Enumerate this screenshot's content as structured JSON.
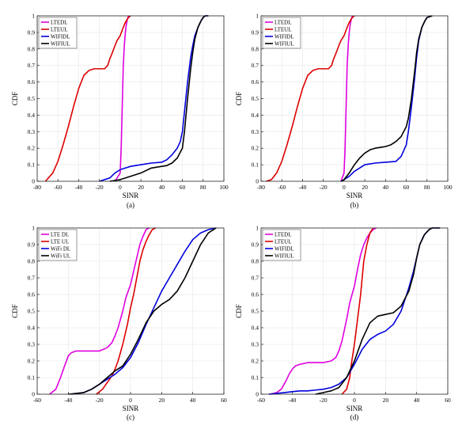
{
  "chart_data": [
    {
      "type": "line",
      "caption": "(a)",
      "xlabel": "SINR",
      "ylabel": "CDF",
      "xlim": [
        -80,
        100
      ],
      "ylim": [
        0,
        1
      ],
      "xticks": [
        -80,
        -60,
        -40,
        -20,
        0,
        20,
        40,
        60,
        80,
        100
      ],
      "yticks": [
        0,
        0.1,
        0.2,
        0.3,
        0.4,
        0.5,
        0.6,
        0.7,
        0.8,
        0.9,
        1
      ],
      "grid": true,
      "legend_position": "top-left",
      "series": [
        {
          "name": "LTEDL",
          "color": "#e000e0",
          "x": [
            -5,
            0,
            1,
            2,
            3,
            4,
            5,
            6,
            7,
            8
          ],
          "y": [
            0,
            0.05,
            0.2,
            0.45,
            0.7,
            0.82,
            0.9,
            0.95,
            0.98,
            1.0
          ]
        },
        {
          "name": "LTEUL",
          "color": "#dd0000",
          "x": [
            -72,
            -65,
            -60,
            -55,
            -50,
            -45,
            -40,
            -35,
            -30,
            -25,
            -20,
            -15,
            -12,
            -10,
            -8,
            -5,
            -3,
            0,
            3,
            5,
            8,
            10
          ],
          "y": [
            0,
            0.05,
            0.12,
            0.22,
            0.33,
            0.45,
            0.56,
            0.64,
            0.67,
            0.68,
            0.68,
            0.68,
            0.7,
            0.74,
            0.77,
            0.82,
            0.85,
            0.88,
            0.93,
            0.96,
            0.99,
            1.0
          ]
        },
        {
          "name": "WIFIDL",
          "color": "#0000dd",
          "x": [
            -20,
            -10,
            -5,
            0,
            5,
            10,
            20,
            30,
            40,
            45,
            50,
            55,
            58,
            60,
            62,
            65,
            68,
            70,
            72,
            75,
            78,
            80,
            82,
            85
          ],
          "y": [
            0,
            0.02,
            0.05,
            0.07,
            0.08,
            0.09,
            0.1,
            0.11,
            0.115,
            0.13,
            0.16,
            0.2,
            0.24,
            0.3,
            0.42,
            0.6,
            0.75,
            0.82,
            0.88,
            0.93,
            0.97,
            0.99,
            1.0,
            1.0
          ]
        },
        {
          "name": "WIFIUL",
          "color": "#000000",
          "x": [
            -10,
            0,
            10,
            20,
            30,
            40,
            45,
            50,
            55,
            60,
            62,
            65,
            68,
            70,
            72,
            75,
            78,
            80,
            82,
            85
          ],
          "y": [
            0,
            0.01,
            0.03,
            0.05,
            0.08,
            0.09,
            0.095,
            0.11,
            0.14,
            0.2,
            0.3,
            0.5,
            0.68,
            0.78,
            0.86,
            0.93,
            0.97,
            0.99,
            1.0,
            1.0
          ]
        }
      ]
    },
    {
      "type": "line",
      "caption": "(b)",
      "xlabel": "SINR",
      "ylabel": "CDF",
      "xlim": [
        -80,
        100
      ],
      "ylim": [
        0,
        1
      ],
      "xticks": [
        -80,
        -60,
        -40,
        -20,
        0,
        20,
        40,
        60,
        80,
        100
      ],
      "yticks": [
        0,
        0.1,
        0.2,
        0.3,
        0.4,
        0.5,
        0.6,
        0.7,
        0.8,
        0.9,
        1
      ],
      "grid": true,
      "legend_position": "top-left",
      "series": [
        {
          "name": "LTEDL",
          "color": "#e000e0",
          "x": [
            -3,
            0,
            1,
            2,
            3,
            4,
            5,
            6,
            7,
            8
          ],
          "y": [
            0,
            0.05,
            0.2,
            0.45,
            0.7,
            0.82,
            0.9,
            0.95,
            0.98,
            1.0
          ]
        },
        {
          "name": "LTEUL",
          "color": "#dd0000",
          "x": [
            -75,
            -70,
            -65,
            -60,
            -55,
            -50,
            -45,
            -40,
            -35,
            -30,
            -25,
            -20,
            -15,
            -12,
            -10,
            -8,
            -5,
            -3,
            0,
            3,
            5,
            8,
            10
          ],
          "y": [
            0,
            0.01,
            0.05,
            0.12,
            0.22,
            0.33,
            0.45,
            0.56,
            0.64,
            0.67,
            0.68,
            0.68,
            0.68,
            0.7,
            0.74,
            0.77,
            0.82,
            0.85,
            0.88,
            0.93,
            0.96,
            0.99,
            1.0
          ]
        },
        {
          "name": "WIFIDL",
          "color": "#0000dd",
          "x": [
            -3,
            0,
            5,
            10,
            15,
            20,
            30,
            40,
            50,
            55,
            60,
            62,
            65,
            68,
            70,
            72,
            75,
            78,
            80,
            85
          ],
          "y": [
            0,
            0.01,
            0.03,
            0.06,
            0.08,
            0.1,
            0.11,
            0.115,
            0.12,
            0.15,
            0.22,
            0.3,
            0.45,
            0.62,
            0.75,
            0.85,
            0.93,
            0.97,
            0.99,
            1.0
          ]
        },
        {
          "name": "WIFIUL",
          "color": "#000000",
          "x": [
            -3,
            0,
            5,
            10,
            15,
            20,
            25,
            30,
            35,
            40,
            45,
            50,
            55,
            60,
            62,
            65,
            68,
            70,
            72,
            75,
            78,
            80,
            85
          ],
          "y": [
            0,
            0.01,
            0.05,
            0.1,
            0.14,
            0.17,
            0.19,
            0.2,
            0.205,
            0.21,
            0.22,
            0.24,
            0.27,
            0.33,
            0.38,
            0.5,
            0.66,
            0.78,
            0.86,
            0.93,
            0.97,
            0.99,
            1.0
          ]
        }
      ]
    },
    {
      "type": "line",
      "caption": "(c)",
      "xlabel": "SINR",
      "ylabel": "CDF",
      "xlim": [
        -60,
        60
      ],
      "ylim": [
        0,
        1
      ],
      "xticks": [
        -60,
        -40,
        -20,
        0,
        20,
        40,
        60
      ],
      "yticks": [
        0,
        0.1,
        0.2,
        0.3,
        0.4,
        0.5,
        0.6,
        0.7,
        0.8,
        0.9,
        1
      ],
      "grid": true,
      "legend_position": "top-left",
      "series": [
        {
          "name": "LTE DL",
          "color": "#e000e0",
          "x": [
            -52,
            -48,
            -45,
            -42,
            -40,
            -38,
            -35,
            -30,
            -25,
            -20,
            -15,
            -12,
            -10,
            -8,
            -5,
            -3,
            0,
            2,
            4,
            6,
            8,
            10,
            12
          ],
          "y": [
            0,
            0.03,
            0.1,
            0.18,
            0.23,
            0.25,
            0.26,
            0.26,
            0.26,
            0.26,
            0.28,
            0.31,
            0.35,
            0.4,
            0.5,
            0.58,
            0.66,
            0.74,
            0.82,
            0.9,
            0.95,
            0.99,
            1.0
          ]
        },
        {
          "name": "LTE UL",
          "color": "#dd0000",
          "x": [
            -22,
            -18,
            -15,
            -12,
            -10,
            -8,
            -5,
            -2,
            0,
            2,
            4,
            6,
            8,
            10,
            12,
            14,
            16
          ],
          "y": [
            0,
            0.03,
            0.07,
            0.11,
            0.15,
            0.2,
            0.3,
            0.42,
            0.52,
            0.6,
            0.7,
            0.8,
            0.87,
            0.92,
            0.96,
            0.99,
            1.0
          ]
        },
        {
          "name": "WiFi DL",
          "color": "#0000dd",
          "x": [
            -38,
            -30,
            -25,
            -20,
            -15,
            -10,
            -5,
            0,
            5,
            10,
            15,
            20,
            25,
            30,
            35,
            40,
            45,
            50,
            55
          ],
          "y": [
            0,
            0.01,
            0.03,
            0.06,
            0.09,
            0.12,
            0.16,
            0.22,
            0.31,
            0.42,
            0.52,
            0.62,
            0.7,
            0.78,
            0.86,
            0.93,
            0.97,
            0.99,
            1.0
          ]
        },
        {
          "name": "WiFi UL",
          "color": "#000000",
          "x": [
            -40,
            -30,
            -25,
            -20,
            -15,
            -10,
            -5,
            0,
            5,
            10,
            15,
            20,
            25,
            30,
            35,
            40,
            45,
            50,
            55
          ],
          "y": [
            0,
            0.01,
            0.03,
            0.06,
            0.1,
            0.14,
            0.17,
            0.24,
            0.33,
            0.43,
            0.5,
            0.54,
            0.57,
            0.62,
            0.7,
            0.8,
            0.9,
            0.97,
            1.0
          ]
        }
      ]
    },
    {
      "type": "line",
      "caption": "(d)",
      "xlabel": "SINR",
      "ylabel": "CDF",
      "xlim": [
        -60,
        60
      ],
      "ylim": [
        0,
        1
      ],
      "xticks": [
        -60,
        -40,
        -20,
        0,
        20,
        40,
        60
      ],
      "yticks": [
        0,
        0.1,
        0.2,
        0.3,
        0.4,
        0.5,
        0.6,
        0.7,
        0.8,
        0.9,
        1
      ],
      "grid": true,
      "legend_position": "top-left",
      "series": [
        {
          "name": "LTEDL",
          "color": "#e000e0",
          "x": [
            -54,
            -50,
            -47,
            -44,
            -42,
            -40,
            -38,
            -35,
            -30,
            -25,
            -20,
            -15,
            -12,
            -10,
            -8,
            -5,
            -3,
            0,
            2,
            4,
            6,
            8,
            10,
            12,
            14
          ],
          "y": [
            0,
            0.01,
            0.03,
            0.08,
            0.12,
            0.15,
            0.17,
            0.18,
            0.19,
            0.19,
            0.19,
            0.2,
            0.22,
            0.26,
            0.32,
            0.45,
            0.55,
            0.65,
            0.75,
            0.84,
            0.9,
            0.94,
            0.97,
            0.99,
            1.0
          ]
        },
        {
          "name": "LTEUL",
          "color": "#dd0000",
          "x": [
            -8,
            -5,
            -3,
            -2,
            0,
            2,
            4,
            5,
            6,
            8,
            10,
            12
          ],
          "y": [
            0,
            0.03,
            0.1,
            0.18,
            0.3,
            0.45,
            0.6,
            0.7,
            0.8,
            0.9,
            0.97,
            1.0
          ]
        },
        {
          "name": "WIFIDL",
          "color": "#0000dd",
          "x": [
            -55,
            -45,
            -40,
            -35,
            -30,
            -25,
            -20,
            -15,
            -10,
            -5,
            0,
            5,
            10,
            15,
            20,
            25,
            30,
            35,
            38,
            40,
            42,
            45,
            48,
            50,
            55
          ],
          "y": [
            0,
            0.01,
            0.015,
            0.02,
            0.02,
            0.025,
            0.03,
            0.04,
            0.06,
            0.1,
            0.18,
            0.27,
            0.33,
            0.36,
            0.38,
            0.42,
            0.5,
            0.64,
            0.74,
            0.82,
            0.9,
            0.96,
            0.99,
            1.0,
            1.0
          ]
        },
        {
          "name": "WIFIUL",
          "color": "#000000",
          "x": [
            -25,
            -20,
            -15,
            -10,
            -5,
            0,
            5,
            10,
            15,
            20,
            25,
            30,
            35,
            38,
            40,
            42,
            45,
            48,
            50,
            55
          ],
          "y": [
            0,
            0.01,
            0.02,
            0.04,
            0.1,
            0.2,
            0.33,
            0.43,
            0.47,
            0.48,
            0.49,
            0.53,
            0.62,
            0.72,
            0.82,
            0.9,
            0.96,
            0.99,
            1.0,
            1.0
          ]
        }
      ]
    }
  ]
}
